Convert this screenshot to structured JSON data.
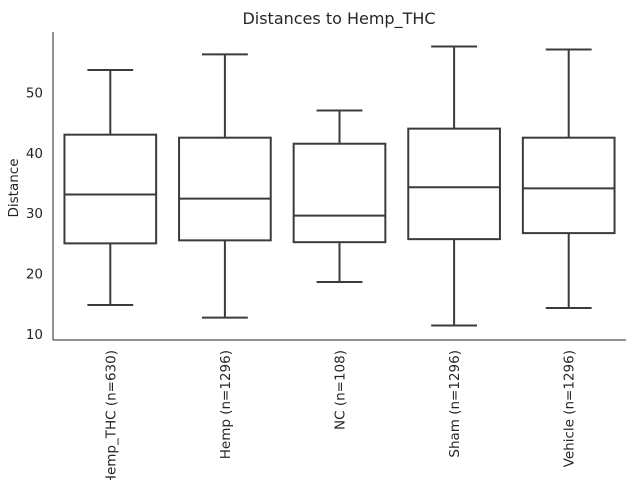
{
  "chart_data": {
    "type": "box",
    "title": "Distances to Hemp_THC",
    "ylabel": "Distance",
    "xlabel": "",
    "ylim": [
      9,
      60
    ],
    "yticks": [
      10,
      20,
      30,
      40,
      50
    ],
    "grid": false,
    "categories": [
      "Hemp_THC (n=630)",
      "Hemp (n=1296)",
      "NC (n=108)",
      "Sham (n=1296)",
      "Vehicle (n=1296)"
    ],
    "boxes": [
      {
        "whisker_low": 14.8,
        "q1": 25.0,
        "median": 33.1,
        "q3": 43.0,
        "whisker_high": 53.7
      },
      {
        "whisker_low": 12.7,
        "q1": 25.5,
        "median": 32.4,
        "q3": 42.5,
        "whisker_high": 56.3
      },
      {
        "whisker_low": 18.6,
        "q1": 25.2,
        "median": 29.6,
        "q3": 41.5,
        "whisker_high": 47.0
      },
      {
        "whisker_low": 11.4,
        "q1": 25.7,
        "median": 34.3,
        "q3": 44.0,
        "whisker_high": 57.6
      },
      {
        "whisker_low": 14.3,
        "q1": 26.7,
        "median": 34.1,
        "q3": 42.5,
        "whisker_high": 57.1
      }
    ],
    "style": {
      "box_fill": "#ffffff",
      "line_color": "#3b3b3b",
      "axis_color": "#262626"
    }
  }
}
